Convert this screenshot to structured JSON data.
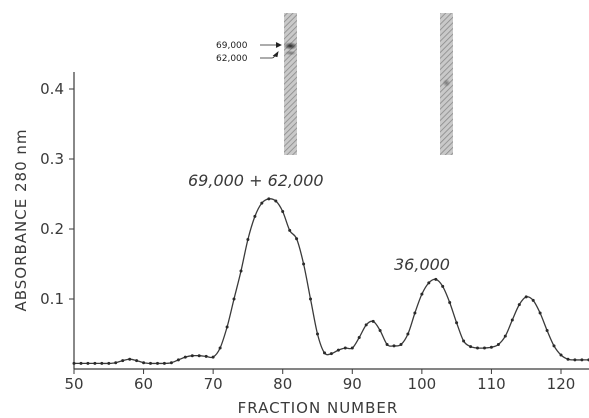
{
  "chart_data": {
    "type": "line",
    "xlabel": "FRACTION NUMBER",
    "ylabel": "ABSORBANCE 280 nm",
    "xlim": [
      50,
      124
    ],
    "ylim": [
      0,
      0.42
    ],
    "xticks": [
      50,
      60,
      70,
      80,
      90,
      100,
      110,
      120
    ],
    "yticks": [
      0.1,
      0.2,
      0.3,
      0.4
    ],
    "grid": false,
    "series": [
      {
        "x": [
          50,
          51,
          52,
          53,
          54,
          55,
          56,
          57,
          58,
          59,
          60,
          61,
          62,
          63,
          64,
          65,
          66,
          67,
          68,
          69,
          70,
          71,
          72,
          73,
          74,
          75,
          76,
          77,
          78,
          79,
          80,
          81,
          82,
          83,
          84,
          85,
          86,
          87,
          88,
          89,
          90,
          91,
          92,
          93,
          94,
          95,
          96,
          97,
          98,
          99,
          100,
          101,
          102,
          103,
          104,
          105,
          106,
          107,
          108,
          109,
          110,
          111,
          112,
          113,
          114,
          115,
          116,
          117,
          118,
          119,
          120,
          121,
          122,
          123,
          124
        ],
        "y": [
          0.008,
          0.008,
          0.008,
          0.008,
          0.008,
          0.008,
          0.009,
          0.012,
          0.014,
          0.012,
          0.009,
          0.008,
          0.008,
          0.008,
          0.009,
          0.013,
          0.017,
          0.019,
          0.019,
          0.018,
          0.017,
          0.03,
          0.06,
          0.1,
          0.14,
          0.185,
          0.218,
          0.237,
          0.243,
          0.24,
          0.225,
          0.198,
          0.186,
          0.15,
          0.1,
          0.05,
          0.023,
          0.022,
          0.027,
          0.03,
          0.03,
          0.045,
          0.063,
          0.068,
          0.055,
          0.035,
          0.033,
          0.035,
          0.05,
          0.08,
          0.107,
          0.123,
          0.128,
          0.118,
          0.095,
          0.066,
          0.04,
          0.032,
          0.03,
          0.03,
          0.031,
          0.035,
          0.047,
          0.07,
          0.092,
          0.103,
          0.098,
          0.08,
          0.055,
          0.033,
          0.02,
          0.014,
          0.013,
          0.013,
          0.013
        ]
      }
    ],
    "annotations": [
      "69,000 + 62,000",
      "36,000"
    ],
    "gel_labels": [
      "69,000",
      "62,000"
    ]
  }
}
